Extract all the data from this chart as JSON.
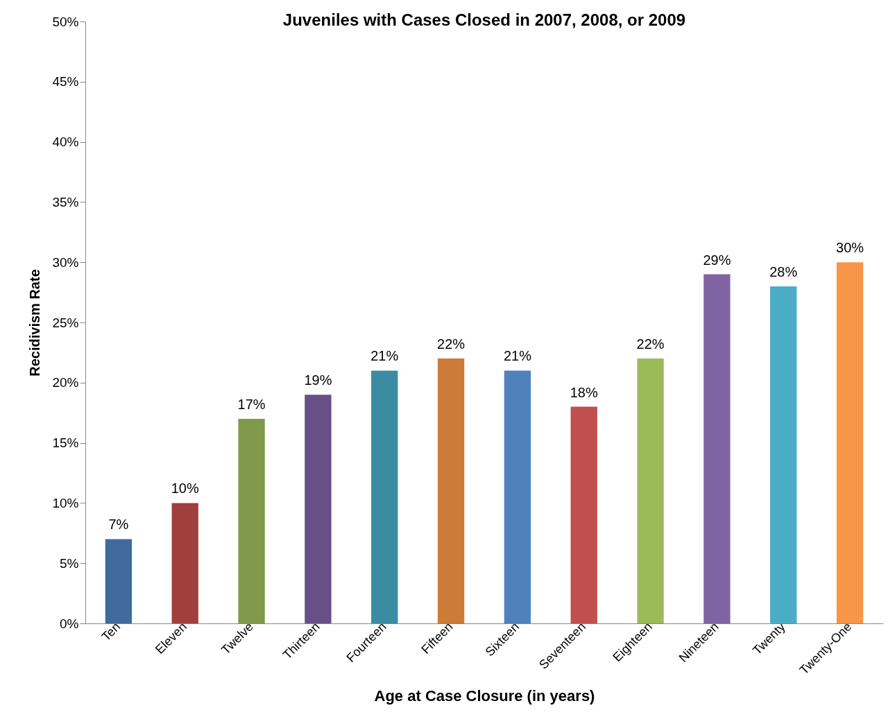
{
  "chart_data": {
    "type": "bar",
    "title": "Juveniles with Cases Closed in 2007, 2008, or 2009",
    "xlabel": "Age at Case Closure (in years)",
    "ylabel": "Recidivism Rate",
    "categories": [
      "Ten",
      "Eleven",
      "Twelve",
      "Thirteen",
      "Fourteen",
      "Fifteen",
      "Sixteen",
      "Seventeen",
      "Eighteen",
      "Nineteen",
      "Twenty",
      "Twenty-One"
    ],
    "values": [
      7,
      10,
      17,
      19,
      21,
      22,
      21,
      18,
      22,
      29,
      28,
      30
    ],
    "colors": [
      "#416b9c",
      "#a0403e",
      "#80994a",
      "#694f87",
      "#3b8ca3",
      "#cc7b38",
      "#4f81bd",
      "#c0504d",
      "#9bbb59",
      "#8064a2",
      "#4bacc6",
      "#f79646"
    ],
    "value_labels": [
      "7%",
      "10%",
      "17%",
      "19%",
      "21%",
      "22%",
      "21%",
      "18%",
      "22%",
      "29%",
      "28%",
      "30%"
    ],
    "ylim": [
      0,
      50
    ],
    "yticks": [
      {
        "value": 0,
        "label": "0%"
      },
      {
        "value": 5,
        "label": "5%"
      },
      {
        "value": 10,
        "label": "10%"
      },
      {
        "value": 15,
        "label": "15%"
      },
      {
        "value": 20,
        "label": "20%"
      },
      {
        "value": 25,
        "label": "25%"
      },
      {
        "value": 30,
        "label": "30%"
      },
      {
        "value": 35,
        "label": "35%"
      },
      {
        "value": 40,
        "label": "40%"
      },
      {
        "value": 45,
        "label": "45%"
      },
      {
        "value": 50,
        "label": "50%"
      }
    ],
    "grid": false
  }
}
